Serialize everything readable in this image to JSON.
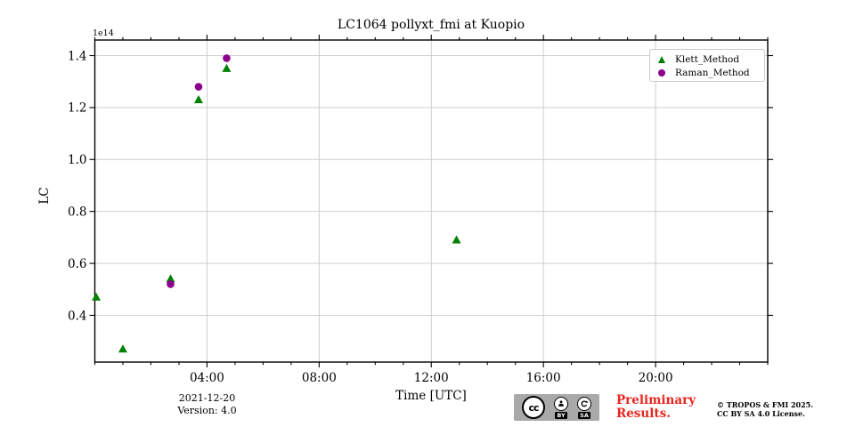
{
  "figure": {
    "title": "LC1064 pollyxt_fmi at Kuopio",
    "y_offset_label": "1e14",
    "ylabel": "LC",
    "xlabel": "Time [UTC]"
  },
  "annotations": {
    "date": "2021-12-20",
    "version": "Version: 4.0",
    "preliminary": [
      "Preliminary",
      "Results."
    ],
    "preliminary_color": "#e8261f",
    "copyright": [
      "© TROPOS & FMI 2025.",
      "CC BY SA 4.0 License."
    ]
  },
  "cc_badge": {
    "cc": "cc",
    "by": "BY",
    "sa": "SA"
  },
  "chart_data": {
    "type": "scatter",
    "title": "LC1064 pollyxt_fmi at Kuopio",
    "xlabel": "Time [UTC]",
    "ylabel": "LC",
    "y_scale_factor": "1e14",
    "xlim_hours": [
      0,
      24
    ],
    "ylim": [
      0.22,
      1.46
    ],
    "grid": true,
    "legend_position": "upper right",
    "x_major_ticks": [
      {
        "hours": 4,
        "label": "04:00"
      },
      {
        "hours": 8,
        "label": "08:00"
      },
      {
        "hours": 12,
        "label": "12:00"
      },
      {
        "hours": 16,
        "label": "16:00"
      },
      {
        "hours": 20,
        "label": "20:00"
      }
    ],
    "x_minor_tick_every_hours": 1,
    "y_major_ticks": [
      {
        "value": 0.4,
        "label": "0.4"
      },
      {
        "value": 0.6,
        "label": "0.6"
      },
      {
        "value": 0.8,
        "label": "0.8"
      },
      {
        "value": 1.0,
        "label": "1.0"
      },
      {
        "value": 1.2,
        "label": "1.2"
      },
      {
        "value": 1.4,
        "label": "1.4"
      }
    ],
    "series": [
      {
        "name": "Klett_Method",
        "marker": "triangle",
        "color": "#008000",
        "points_hours_lc1e14": [
          [
            0.05,
            0.47
          ],
          [
            1.0,
            0.27
          ],
          [
            2.7,
            0.54
          ],
          [
            3.7,
            1.23
          ],
          [
            4.7,
            1.35
          ],
          [
            12.9,
            0.69
          ]
        ]
      },
      {
        "name": "Raman_Method",
        "marker": "circle",
        "color": "#8b008b",
        "points_hours_lc1e14": [
          [
            2.7,
            0.52
          ],
          [
            3.7,
            1.28
          ],
          [
            4.7,
            1.39
          ]
        ]
      }
    ]
  }
}
